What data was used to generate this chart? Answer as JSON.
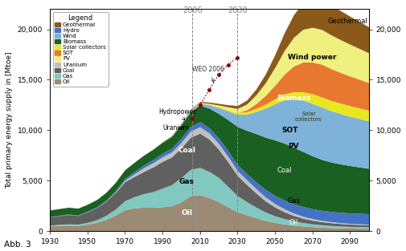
{
  "ylabel": "Total primary energy supply in [Mtoe]",
  "xlim": [
    1930,
    2100
  ],
  "ylim": [
    0,
    22000
  ],
  "yticks": [
    0,
    5000,
    10000,
    15000,
    20000
  ],
  "xticks": [
    1930,
    1950,
    1970,
    1990,
    2010,
    2030,
    2050,
    2070,
    2090
  ],
  "vlines": [
    2006,
    2030
  ],
  "vline_labels": [
    "2006",
    "2030"
  ],
  "weo_label": "WEO 2006",
  "weo_points_x": [
    2006,
    2010,
    2015,
    2020,
    2025,
    2030
  ],
  "weo_points_y": [
    11100,
    12500,
    14000,
    15500,
    16500,
    17200
  ],
  "colors": {
    "Oil": "#9B8B75",
    "Gas": "#80C8C0",
    "Coal": "#606060",
    "Uranium": "#C0C0C0",
    "Hydro": "#4472C4",
    "Biomass": "#1A6020",
    "Wind": "#7FB2D8",
    "Solar collectors": "#E8E820",
    "SOT": "#E87830",
    "PV": "#F0F080",
    "Geothermal": "#8B5A1A"
  },
  "legend_colors": {
    "Geothermal": "#8B5A1A",
    "Hydro": "#4472C4",
    "Wind": "#7FB2D8",
    "Biomass": "#1A6020",
    "Solar collectors": "#E8E820",
    "SOT": "#E87830",
    "PV": "#F0F080",
    "Uranium": "#C0C0C0",
    "Coal": "#606060",
    "Gas": "#80C8C0",
    "Oil": "#9B8B75"
  },
  "years": [
    1930,
    1935,
    1940,
    1945,
    1950,
    1955,
    1960,
    1965,
    1970,
    1975,
    1980,
    1985,
    1990,
    1995,
    2000,
    2005,
    2010,
    2015,
    2020,
    2025,
    2030,
    2035,
    2040,
    2045,
    2050,
    2055,
    2060,
    2065,
    2070,
    2075,
    2080,
    2085,
    2090,
    2095,
    2100
  ],
  "Oil": [
    500,
    550,
    580,
    540,
    680,
    850,
    1150,
    1600,
    2100,
    2300,
    2350,
    2350,
    2400,
    2500,
    2900,
    3500,
    3600,
    3300,
    2900,
    2400,
    1900,
    1600,
    1300,
    1050,
    850,
    700,
    580,
    490,
    420,
    370,
    330,
    300,
    280,
    270,
    260
  ],
  "Gas": [
    80,
    100,
    120,
    130,
    170,
    260,
    400,
    580,
    900,
    1100,
    1350,
    1550,
    1850,
    2100,
    2400,
    2600,
    2700,
    2600,
    2400,
    2000,
    1600,
    1300,
    1050,
    820,
    650,
    520,
    420,
    340,
    280,
    240,
    210,
    185,
    165,
    155,
    145
  ],
  "Coal": [
    800,
    860,
    920,
    860,
    1050,
    1200,
    1400,
    1650,
    1900,
    2000,
    2200,
    2450,
    2650,
    2750,
    2950,
    3200,
    3400,
    3200,
    2800,
    2450,
    2000,
    1700,
    1400,
    1100,
    870,
    680,
    530,
    430,
    360,
    310,
    275,
    250,
    230,
    215,
    200
  ],
  "Uranium": [
    0,
    0,
    0,
    0,
    0,
    5,
    20,
    50,
    130,
    260,
    370,
    420,
    460,
    490,
    530,
    610,
    640,
    610,
    570,
    530,
    490,
    470,
    440,
    390,
    345,
    295,
    245,
    200,
    158,
    128,
    108,
    90,
    78,
    68,
    58
  ],
  "Hydro": [
    45,
    50,
    55,
    55,
    65,
    80,
    100,
    130,
    175,
    220,
    265,
    305,
    350,
    375,
    415,
    455,
    490,
    515,
    535,
    555,
    575,
    610,
    665,
    735,
    808,
    865,
    925,
    965,
    985,
    998,
    1010,
    1022,
    1035,
    1042,
    1048
  ],
  "Biomass": [
    650,
    660,
    670,
    670,
    680,
    720,
    770,
    820,
    870,
    920,
    970,
    1020,
    1080,
    1170,
    1370,
    1470,
    1650,
    1950,
    2450,
    3100,
    3800,
    4300,
    4800,
    5200,
    5500,
    5650,
    5600,
    5450,
    5250,
    5050,
    4900,
    4800,
    4700,
    4600,
    4500
  ],
  "Wind": [
    0,
    0,
    0,
    0,
    0,
    0,
    0,
    0,
    0,
    0,
    3,
    8,
    15,
    25,
    55,
    110,
    190,
    340,
    580,
    880,
    1200,
    1600,
    2200,
    2900,
    3600,
    4300,
    4800,
    5100,
    5200,
    5200,
    5100,
    5000,
    4900,
    4800,
    4700
  ],
  "Solar": [
    0,
    0,
    0,
    0,
    0,
    0,
    0,
    0,
    0,
    0,
    1,
    3,
    8,
    12,
    18,
    28,
    45,
    70,
    110,
    150,
    190,
    240,
    310,
    390,
    490,
    590,
    710,
    830,
    950,
    990,
    1010,
    1025,
    1038,
    1048,
    1058
  ],
  "SOT": [
    0,
    0,
    0,
    0,
    0,
    0,
    0,
    0,
    0,
    0,
    0,
    0,
    0,
    0,
    0,
    0,
    0,
    0,
    0,
    0,
    0,
    190,
    480,
    870,
    1350,
    1950,
    2550,
    2950,
    3150,
    3250,
    3150,
    3050,
    2950,
    2850,
    2750
  ],
  "PV": [
    0,
    0,
    0,
    0,
    0,
    0,
    0,
    0,
    0,
    0,
    0,
    1,
    4,
    6,
    10,
    18,
    35,
    70,
    140,
    240,
    390,
    580,
    870,
    1260,
    1760,
    2350,
    2850,
    3250,
    3450,
    3450,
    3350,
    3250,
    3150,
    3050,
    2950
  ],
  "Geothermal": [
    0,
    0,
    0,
    0,
    0,
    0,
    1,
    3,
    8,
    12,
    18,
    25,
    35,
    45,
    55,
    75,
    95,
    125,
    165,
    215,
    295,
    390,
    580,
    870,
    1270,
    1750,
    2250,
    2650,
    2870,
    2980,
    2980,
    2880,
    2780,
    2680,
    2580
  ],
  "note": "Abb. 3"
}
